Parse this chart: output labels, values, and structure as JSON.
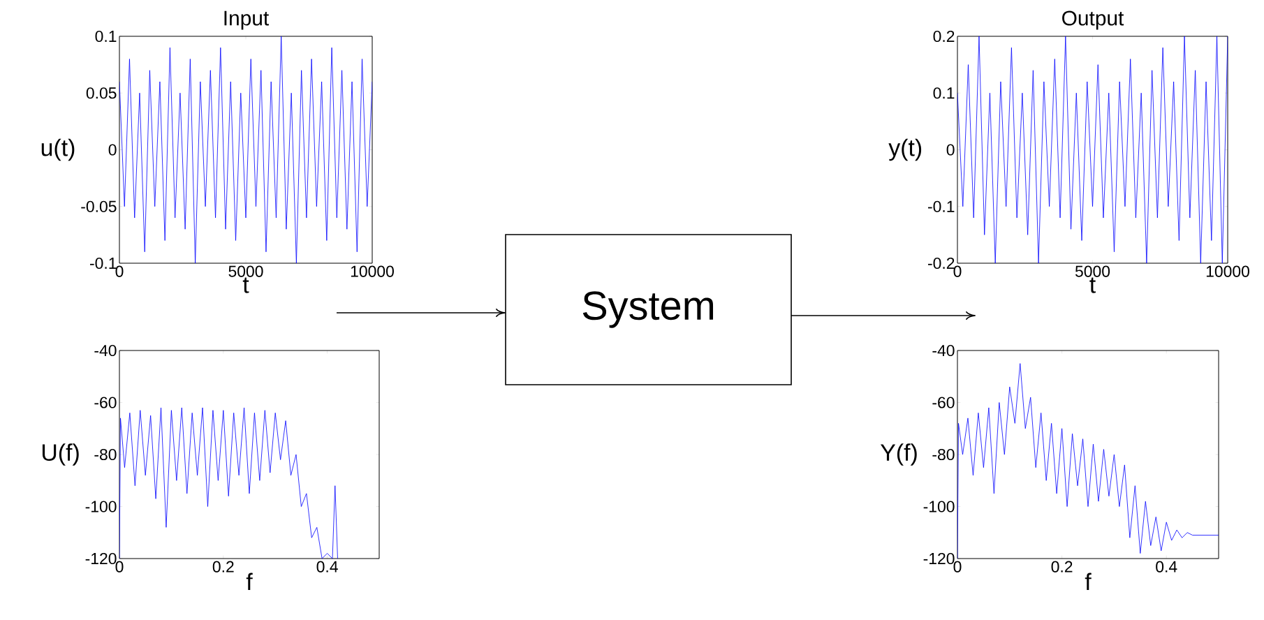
{
  "chart_data": [
    {
      "type": "line",
      "title": "Input",
      "xlabel": "t",
      "ylabel": "u(t)",
      "color": "#0000ff",
      "xlim": [
        0,
        10000
      ],
      "ylim": [
        -0.1,
        0.1
      ],
      "xticks": [
        0,
        5000,
        10000
      ],
      "yticks": [
        -0.1,
        -0.05,
        0,
        0.05,
        0.1
      ],
      "x": [
        0,
        200,
        400,
        600,
        800,
        1000,
        1200,
        1400,
        1600,
        1800,
        2000,
        2200,
        2400,
        2600,
        2800,
        3000,
        3200,
        3400,
        3600,
        3800,
        4000,
        4200,
        4400,
        4600,
        4800,
        5000,
        5200,
        5400,
        5600,
        5800,
        6000,
        6200,
        6400,
        6600,
        6800,
        7000,
        7200,
        7400,
        7600,
        7800,
        8000,
        8200,
        8400,
        8600,
        8800,
        9000,
        9200,
        9400,
        9600,
        9800,
        10000
      ],
      "values": [
        0.06,
        -0.05,
        0.08,
        -0.06,
        0.05,
        -0.09,
        0.07,
        -0.05,
        0.06,
        -0.08,
        0.09,
        -0.06,
        0.05,
        -0.07,
        0.08,
        -0.1,
        0.06,
        -0.05,
        0.07,
        -0.06,
        0.09,
        -0.07,
        0.06,
        -0.08,
        0.05,
        -0.06,
        0.08,
        -0.05,
        0.07,
        -0.09,
        0.06,
        -0.06,
        0.1,
        -0.07,
        0.05,
        -0.1,
        0.07,
        -0.06,
        0.08,
        -0.05,
        0.06,
        -0.08,
        0.09,
        -0.06,
        0.07,
        -0.07,
        0.06,
        -0.09,
        0.08,
        -0.05,
        0.06
      ]
    },
    {
      "type": "line",
      "xlabel": "f",
      "ylabel": "U(f)",
      "color": "#0000ff",
      "xlim": [
        0,
        0.5
      ],
      "ylim": [
        -120,
        -40
      ],
      "xticks": [
        0,
        0.2,
        0.4
      ],
      "yticks": [
        -120,
        -100,
        -80,
        -60,
        -40
      ],
      "x": [
        0,
        0.002,
        0.01,
        0.02,
        0.03,
        0.04,
        0.05,
        0.06,
        0.07,
        0.08,
        0.09,
        0.1,
        0.11,
        0.12,
        0.13,
        0.14,
        0.15,
        0.16,
        0.17,
        0.18,
        0.19,
        0.2,
        0.21,
        0.22,
        0.23,
        0.24,
        0.25,
        0.26,
        0.27,
        0.28,
        0.29,
        0.3,
        0.31,
        0.32,
        0.33,
        0.34,
        0.35,
        0.36,
        0.37,
        0.38,
        0.39,
        0.4,
        0.41,
        0.415,
        0.42
      ],
      "values": [
        -120,
        -66,
        -85,
        -64,
        -92,
        -63,
        -88,
        -65,
        -97,
        -62,
        -108,
        -63,
        -90,
        -62,
        -95,
        -64,
        -88,
        -62,
        -100,
        -63,
        -90,
        -63,
        -96,
        -64,
        -88,
        -62,
        -95,
        -64,
        -90,
        -63,
        -87,
        -64,
        -82,
        -67,
        -88,
        -80,
        -100,
        -95,
        -112,
        -108,
        -120,
        -118,
        -120,
        -92,
        -120
      ]
    },
    {
      "type": "line",
      "title": "Output",
      "xlabel": "t",
      "ylabel": "y(t)",
      "color": "#0000ff",
      "xlim": [
        0,
        10000
      ],
      "ylim": [
        -0.2,
        0.2
      ],
      "xticks": [
        0,
        5000,
        10000
      ],
      "yticks": [
        -0.2,
        -0.1,
        0,
        0.1,
        0.2
      ],
      "x": [
        0,
        200,
        400,
        600,
        800,
        1000,
        1200,
        1400,
        1600,
        1800,
        2000,
        2200,
        2400,
        2600,
        2800,
        3000,
        3200,
        3400,
        3600,
        3800,
        4000,
        4200,
        4400,
        4600,
        4800,
        5000,
        5200,
        5400,
        5600,
        5800,
        6000,
        6200,
        6400,
        6600,
        6800,
        7000,
        7200,
        7400,
        7600,
        7800,
        8000,
        8200,
        8400,
        8600,
        8800,
        9000,
        9200,
        9400,
        9600,
        9800,
        10000
      ],
      "values": [
        0.1,
        -0.1,
        0.15,
        -0.12,
        0.2,
        -0.15,
        0.1,
        -0.2,
        0.12,
        -0.1,
        0.18,
        -0.12,
        0.1,
        -0.15,
        0.14,
        -0.2,
        0.12,
        -0.1,
        0.16,
        -0.12,
        0.2,
        -0.14,
        0.1,
        -0.16,
        0.12,
        -0.1,
        0.15,
        -0.12,
        0.1,
        -0.18,
        0.12,
        -0.1,
        0.16,
        -0.12,
        0.1,
        -0.2,
        0.14,
        -0.12,
        0.18,
        -0.1,
        0.12,
        -0.16,
        0.2,
        -0.12,
        0.14,
        -0.2,
        0.12,
        -0.16,
        0.2,
        -0.2,
        0.2
      ]
    },
    {
      "type": "line",
      "xlabel": "f",
      "ylabel": "Y(f)",
      "color": "#0000ff",
      "xlim": [
        0,
        0.5
      ],
      "ylim": [
        -120,
        -40
      ],
      "xticks": [
        0,
        0.2,
        0.4
      ],
      "yticks": [
        -120,
        -100,
        -80,
        -60,
        -40
      ],
      "x": [
        0,
        0.002,
        0.01,
        0.02,
        0.03,
        0.04,
        0.05,
        0.06,
        0.07,
        0.08,
        0.09,
        0.1,
        0.11,
        0.12,
        0.13,
        0.14,
        0.15,
        0.16,
        0.17,
        0.18,
        0.19,
        0.2,
        0.21,
        0.22,
        0.23,
        0.24,
        0.25,
        0.26,
        0.27,
        0.28,
        0.29,
        0.3,
        0.31,
        0.32,
        0.33,
        0.34,
        0.35,
        0.36,
        0.37,
        0.38,
        0.39,
        0.4,
        0.41,
        0.42,
        0.43,
        0.44,
        0.45,
        0.46,
        0.47,
        0.48,
        0.49,
        0.5
      ],
      "values": [
        -120,
        -68,
        -80,
        -66,
        -88,
        -64,
        -85,
        -62,
        -95,
        -60,
        -80,
        -54,
        -68,
        -45,
        -70,
        -58,
        -85,
        -64,
        -90,
        -68,
        -95,
        -70,
        -100,
        -72,
        -92,
        -74,
        -100,
        -76,
        -98,
        -78,
        -96,
        -80,
        -100,
        -84,
        -112,
        -92,
        -118,
        -98,
        -115,
        -104,
        -117,
        -106,
        -113,
        -109,
        -112,
        -110,
        -111,
        -111,
        -111,
        -111,
        -111,
        -111
      ]
    },
    {
      "type": "other",
      "annotations": [
        "System"
      ]
    }
  ]
}
